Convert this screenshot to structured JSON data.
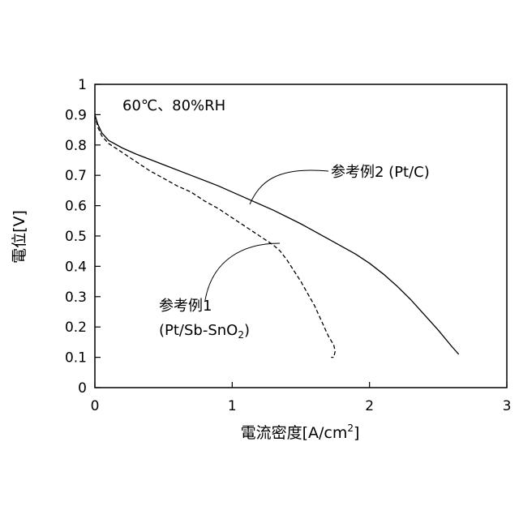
{
  "chart_data": {
    "type": "line",
    "condition_text": "60℃、80%RH",
    "xlabel": "電流密度[A/cm",
    "xlabel_sup": "2",
    "xlabel_close": "]",
    "ylabel": "電位[V]",
    "xlim": [
      0,
      3
    ],
    "ylim": [
      0,
      1
    ],
    "x_ticks": [
      0,
      1,
      2,
      3
    ],
    "y_ticks": [
      0,
      0.1,
      0.2,
      0.3,
      0.4,
      0.5,
      0.6,
      0.7,
      0.8,
      0.9,
      1
    ],
    "x_tick_labels": [
      "0",
      "1",
      "2",
      "3"
    ],
    "y_tick_labels": [
      "0",
      "0.1",
      "0.2",
      "0.3",
      "0.4",
      "0.5",
      "0.6",
      "0.7",
      "0.8",
      "0.9",
      "1"
    ],
    "grid": false,
    "series": [
      {
        "name": "参考例2 (Pt/C)",
        "style": "solid",
        "color": "#000000",
        "x": [
          0.0,
          0.02,
          0.05,
          0.1,
          0.2,
          0.3,
          0.5,
          0.7,
          0.9,
          1.1,
          1.3,
          1.5,
          1.7,
          1.9,
          2.0,
          2.1,
          2.2,
          2.3,
          2.4,
          2.5,
          2.6,
          2.65
        ],
        "y": [
          0.9,
          0.87,
          0.84,
          0.815,
          0.79,
          0.77,
          0.735,
          0.7,
          0.665,
          0.625,
          0.585,
          0.54,
          0.49,
          0.44,
          0.41,
          0.375,
          0.335,
          0.29,
          0.24,
          0.19,
          0.135,
          0.11
        ]
      },
      {
        "name_line1": "参考例1",
        "name_line2_pre": "(Pt/Sb-SnO",
        "name_line2_sub": "2",
        "name_line2_post": ")",
        "style": "dashed",
        "color": "#000000",
        "x": [
          0.0,
          0.02,
          0.05,
          0.1,
          0.2,
          0.3,
          0.4,
          0.5,
          0.6,
          0.7,
          0.8,
          0.9,
          1.0,
          1.1,
          1.2,
          1.3,
          1.35,
          1.4,
          1.5,
          1.6,
          1.7,
          1.74,
          1.75,
          1.74,
          1.72
        ],
        "y": [
          0.9,
          0.86,
          0.83,
          0.805,
          0.775,
          0.745,
          0.715,
          0.69,
          0.665,
          0.645,
          0.615,
          0.59,
          0.56,
          0.53,
          0.5,
          0.47,
          0.45,
          0.42,
          0.35,
          0.27,
          0.17,
          0.14,
          0.12,
          0.1,
          0.1
        ]
      }
    ]
  }
}
